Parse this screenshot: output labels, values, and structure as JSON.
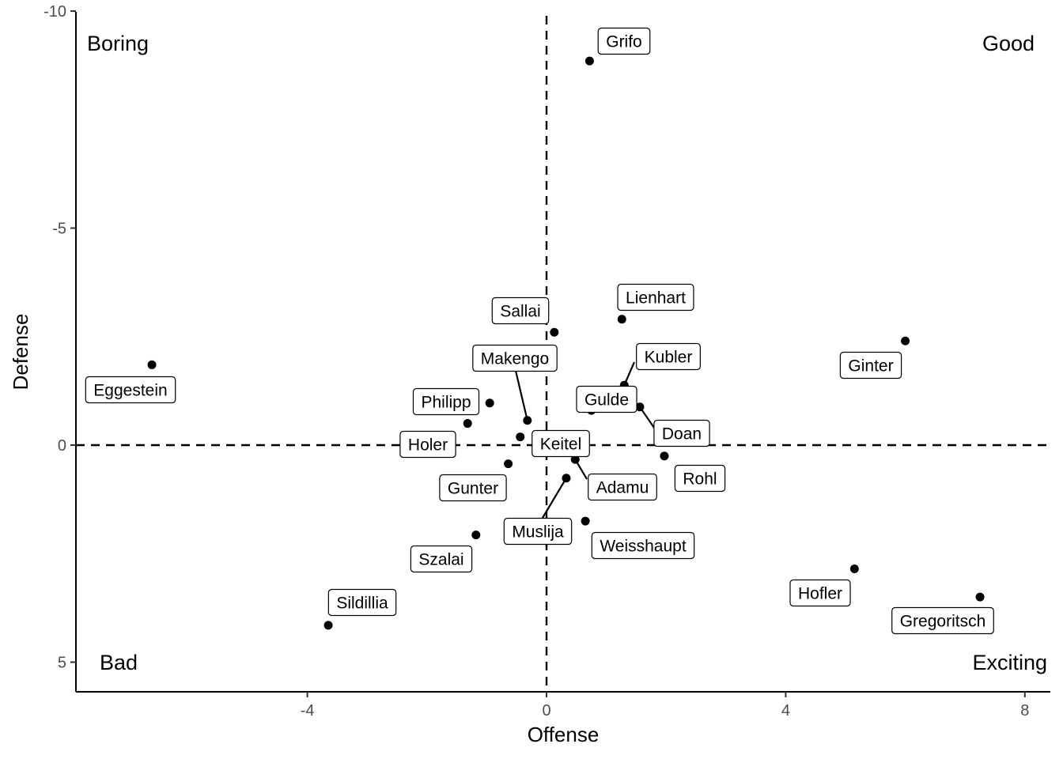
{
  "chart_data": {
    "type": "scatter",
    "xlabel": "Offense",
    "ylabel": "Defense",
    "xlim": [
      -7.9,
      8.5
    ],
    "ylim": [
      -10,
      5.7
    ],
    "y_reversed": true,
    "x_ticks": [
      -4,
      0,
      4,
      8
    ],
    "x_tick_labels": [
      "-4",
      "0",
      "4",
      "8"
    ],
    "y_ticks": [
      -10,
      -5,
      0,
      5
    ],
    "y_tick_labels": [
      "-10",
      "-5",
      "0",
      "5"
    ],
    "reference_lines": {
      "x": 0,
      "y": 0,
      "style": "dashed"
    },
    "quadrant_labels": {
      "top_left": "Boring",
      "top_right": "Good",
      "bottom_left": "Bad",
      "bottom_right": "Exciting"
    },
    "points": [
      {
        "name": "Grifo",
        "x": 0.72,
        "y": -8.85
      },
      {
        "name": "Lienhart",
        "x": 1.26,
        "y": -2.9
      },
      {
        "name": "Sallai",
        "x": 0.13,
        "y": -2.6
      },
      {
        "name": "Ginter",
        "x": 6.0,
        "y": -2.4
      },
      {
        "name": "Eggestein",
        "x": -6.6,
        "y": -1.85
      },
      {
        "name": "Makengo",
        "x": -0.32,
        "y": -0.57
      },
      {
        "name": "Kubler",
        "x": 1.3,
        "y": -1.38
      },
      {
        "name": "Philipp",
        "x": -0.95,
        "y": -0.97
      },
      {
        "name": "Gulde",
        "x": 0.75,
        "y": -0.8
      },
      {
        "name": "Doan",
        "x": 1.56,
        "y": -0.88
      },
      {
        "name": "Holer",
        "x": -1.32,
        "y": -0.5
      },
      {
        "name": "Keitel",
        "x": -0.44,
        "y": -0.19
      },
      {
        "name": "Rohl",
        "x": 1.97,
        "y": 0.25
      },
      {
        "name": "Gunter",
        "x": -0.64,
        "y": 0.43
      },
      {
        "name": "Adamu",
        "x": 0.48,
        "y": 0.33
      },
      {
        "name": "Muslija",
        "x": 0.33,
        "y": 0.76
      },
      {
        "name": "Weisshaupt",
        "x": 0.65,
        "y": 1.75
      },
      {
        "name": "Szalai",
        "x": -1.18,
        "y": 2.07
      },
      {
        "name": "Hofler",
        "x": 5.15,
        "y": 2.85
      },
      {
        "name": "Gregoritsch",
        "x": 7.25,
        "y": 3.5
      },
      {
        "name": "Sildillia",
        "x": -3.65,
        "y": 4.15
      }
    ]
  }
}
